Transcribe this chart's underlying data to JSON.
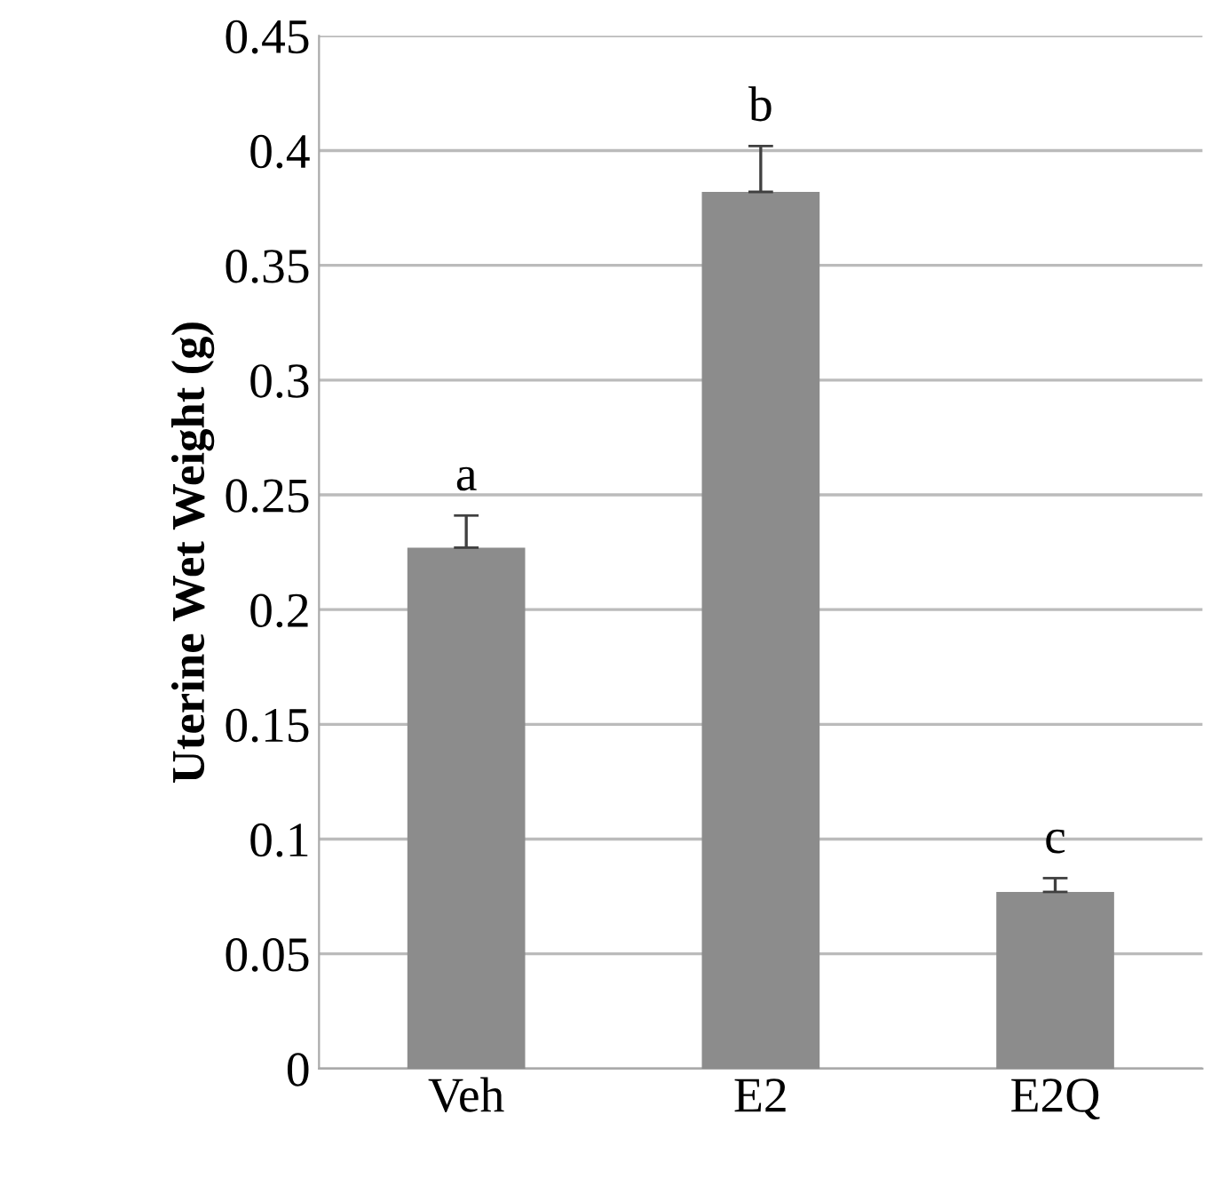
{
  "chart_data": {
    "type": "bar",
    "ylabel": "Uterine Wet Weight (g)",
    "categories": [
      "Veh",
      "E2",
      "E2Q"
    ],
    "values": [
      0.227,
      0.382,
      0.077
    ],
    "errors": [
      [
        0.227,
        0.241
      ],
      [
        0.382,
        0.402
      ],
      [
        0.077,
        0.083
      ]
    ],
    "color": "#8c8c8c",
    "ylim": [
      0,
      0.45
    ],
    "yticks": [
      0,
      0.05,
      0.1,
      0.15,
      0.2,
      0.25,
      0.3,
      0.35,
      0.4,
      0.45
    ],
    "grid": "y",
    "annotations": [
      "a",
      "b",
      "c"
    ]
  }
}
